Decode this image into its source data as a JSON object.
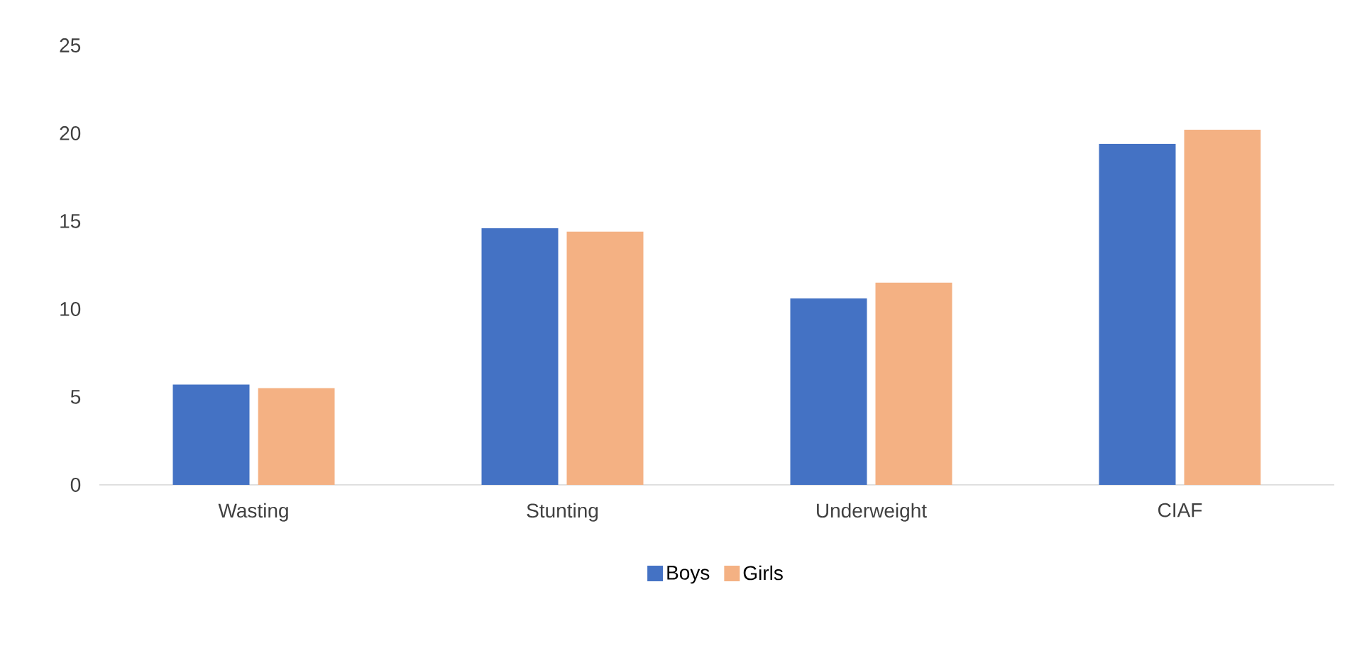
{
  "chart_data": {
    "type": "bar",
    "categories": [
      "Wasting",
      "Stunting",
      "Underweight",
      "CIAF"
    ],
    "series": [
      {
        "name": "Boys",
        "color": "#4472c4",
        "values": [
          5.7,
          14.6,
          10.6,
          19.4
        ]
      },
      {
        "name": "Girls",
        "color": "#f4b183",
        "values": [
          5.5,
          14.4,
          11.5,
          20.2
        ]
      }
    ],
    "ylim": [
      0,
      25
    ],
    "yticks": [
      0,
      5,
      10,
      15,
      20,
      25
    ],
    "grid": false,
    "legend": "bottom"
  }
}
